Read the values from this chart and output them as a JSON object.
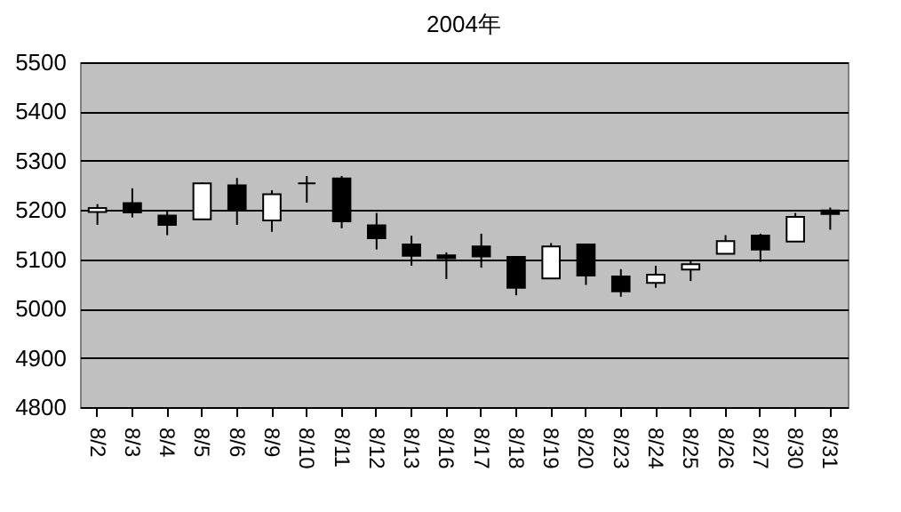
{
  "chart_data": {
    "type": "candlestick",
    "title": "2004年",
    "categories": [
      "8/2",
      "8/3",
      "8/4",
      "8/5",
      "8/6",
      "8/9",
      "8/10",
      "8/11",
      "8/12",
      "8/13",
      "8/16",
      "8/17",
      "8/18",
      "8/19",
      "8/20",
      "8/23",
      "8/24",
      "8/25",
      "8/26",
      "8/27",
      "8/30",
      "8/31"
    ],
    "ohlc": [
      [
        5196,
        5212,
        5170,
        5204
      ],
      [
        5214,
        5244,
        5185,
        5195
      ],
      [
        5189,
        5199,
        5149,
        5170
      ],
      [
        5181,
        5256,
        5181,
        5254
      ],
      [
        5250,
        5265,
        5170,
        5200
      ],
      [
        5179,
        5240,
        5156,
        5232
      ],
      [
        5254,
        5269,
        5215,
        5254
      ],
      [
        5264,
        5269,
        5163,
        5177
      ],
      [
        5169,
        5194,
        5120,
        5143
      ],
      [
        5130,
        5148,
        5087,
        5107
      ],
      [
        5108,
        5114,
        5060,
        5102
      ],
      [
        5126,
        5152,
        5083,
        5106
      ],
      [
        5105,
        5105,
        5027,
        5042
      ],
      [
        5061,
        5133,
        5061,
        5126
      ],
      [
        5130,
        5130,
        5048,
        5067
      ],
      [
        5065,
        5080,
        5024,
        5035
      ],
      [
        5052,
        5087,
        5042,
        5069
      ],
      [
        5079,
        5099,
        5056,
        5090
      ],
      [
        5111,
        5149,
        5111,
        5137
      ],
      [
        5148,
        5152,
        5095,
        5120
      ],
      [
        5136,
        5194,
        5136,
        5186
      ],
      [
        5199,
        5205,
        5160,
        5192
      ]
    ],
    "colors": [
      "#ffffff",
      "#000000",
      "#000000",
      "#ffffff",
      "#000000",
      "#ffffff",
      "#000000",
      "#000000",
      "#000000",
      "#000000",
      "#000000",
      "#000000",
      "#000000",
      "#ffffff",
      "#000000",
      "#000000",
      "#ffffff",
      "#ffffff",
      "#ffffff",
      "#000000",
      "#ffffff",
      "#000000"
    ],
    "ylim": [
      4800,
      5500
    ],
    "yticks": [
      4800,
      4900,
      5000,
      5100,
      5200,
      5300,
      5400,
      5500
    ],
    "grid": "y"
  }
}
